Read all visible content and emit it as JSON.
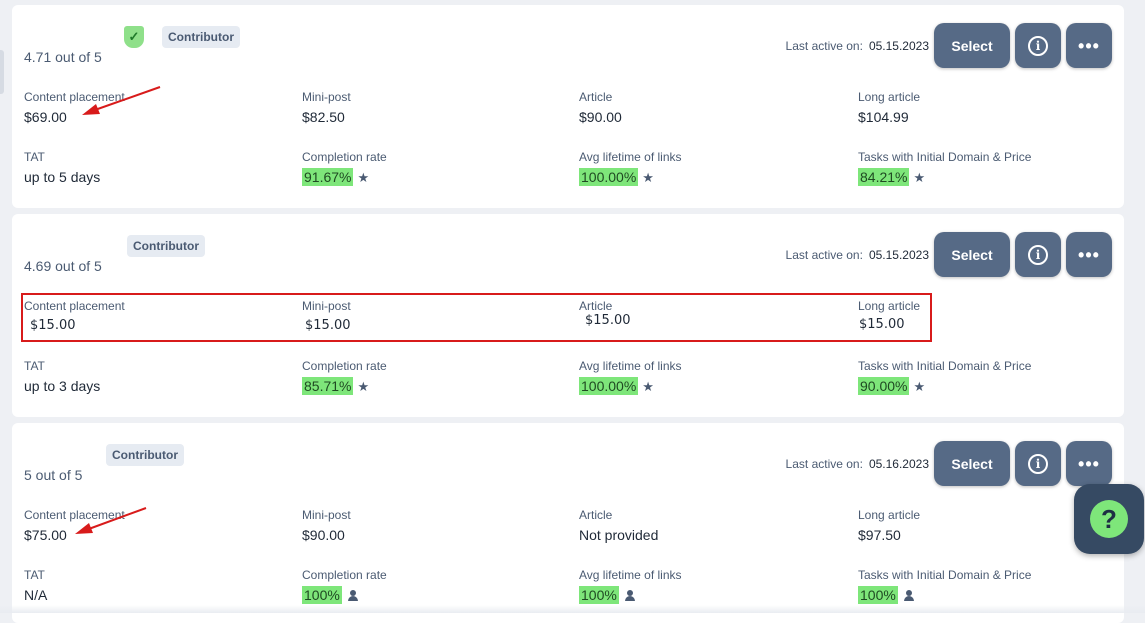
{
  "cards": [
    {
      "rating": "4.71 out of 5",
      "badge": "Contributor",
      "verified": true,
      "last_active_label": "Last active on:",
      "last_active_date": "05.15.2023",
      "select_label": "Select",
      "prices": {
        "content_placement": {
          "label": "Content placement",
          "value": "$69.00"
        },
        "mini_post": {
          "label": "Mini-post",
          "value": "$82.50"
        },
        "article": {
          "label": "Article",
          "value": "$90.00"
        },
        "long_article": {
          "label": "Long article",
          "value": "$104.99"
        }
      },
      "stats": {
        "tat": {
          "label": "TAT",
          "value": "up to 5 days"
        },
        "completion": {
          "label": "Completion rate",
          "value": "91.67%",
          "icon": "star-icon"
        },
        "lifetime": {
          "label": "Avg lifetime of links",
          "value": "100.00%",
          "icon": "star-icon"
        },
        "tasks": {
          "label": "Tasks with Initial Domain & Price",
          "value": "84.21%",
          "icon": "star-icon"
        }
      }
    },
    {
      "rating": "4.69 out of 5",
      "badge": "Contributor",
      "verified": false,
      "last_active_label": "Last active on:",
      "last_active_date": "05.15.2023",
      "select_label": "Select",
      "prices": {
        "content_placement": {
          "label": "Content placement",
          "value": "$15.00"
        },
        "mini_post": {
          "label": "Mini-post",
          "value": "$15.00"
        },
        "article": {
          "label": "Article",
          "value": "$15.00"
        },
        "long_article": {
          "label": "Long article",
          "value": "$15.00"
        }
      },
      "stats": {
        "tat": {
          "label": "TAT",
          "value": "up to 3 days"
        },
        "completion": {
          "label": "Completion rate",
          "value": "85.71%",
          "icon": "star-icon"
        },
        "lifetime": {
          "label": "Avg lifetime of links",
          "value": "100.00%",
          "icon": "star-icon"
        },
        "tasks": {
          "label": "Tasks with Initial Domain & Price",
          "value": "90.00%",
          "icon": "star-icon"
        }
      }
    },
    {
      "rating": "5 out of 5",
      "badge": "Contributor",
      "verified": false,
      "last_active_label": "Last active on:",
      "last_active_date": "05.16.2023",
      "select_label": "Select",
      "prices": {
        "content_placement": {
          "label": "Content placement",
          "value": "$75.00"
        },
        "mini_post": {
          "label": "Mini-post",
          "value": "$90.00"
        },
        "article": {
          "label": "Article",
          "value": "Not provided"
        },
        "long_article": {
          "label": "Long article",
          "value": "$97.50"
        }
      },
      "stats": {
        "tat": {
          "label": "TAT",
          "value": "N/A"
        },
        "completion": {
          "label": "Completion rate",
          "value": "100%",
          "icon": "person-icon"
        },
        "lifetime": {
          "label": "Avg lifetime of links",
          "value": "100%",
          "icon": "person-icon"
        },
        "tasks": {
          "label": "Tasks with Initial Domain & Price",
          "value": "100%",
          "icon": "person-icon"
        }
      }
    }
  ],
  "colors": {
    "button": "#566a86",
    "highlight": "#7ee67a",
    "annotation": "#d81b1b",
    "help_bg": "#364a63"
  },
  "help_button": {
    "glyph": "?"
  }
}
